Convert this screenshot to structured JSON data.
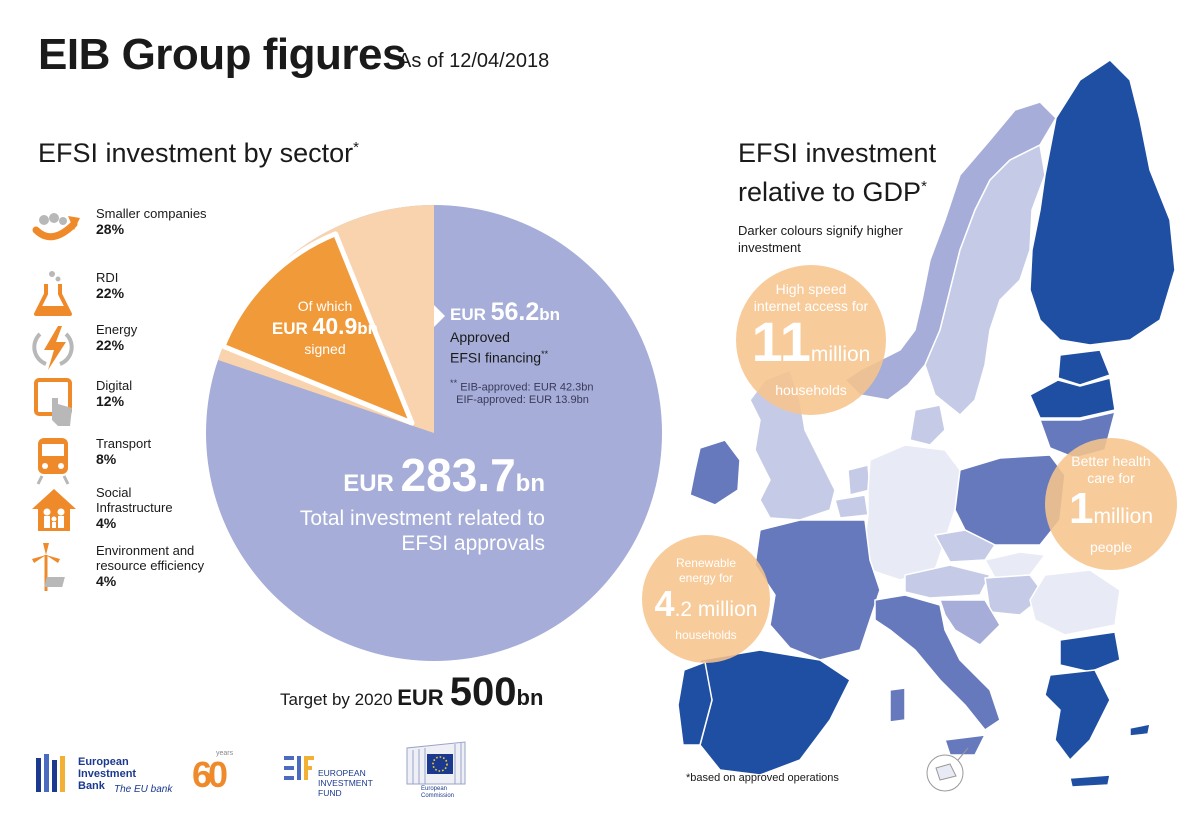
{
  "header": {
    "title": "EIB Group figures",
    "as_of": "As of 12/04/2018"
  },
  "sector_section": {
    "title": "EFSI investment by sector",
    "title_mark": "*",
    "items": [
      {
        "label": "Smaller companies",
        "pct": "28%",
        "icon": "handshake-people-icon"
      },
      {
        "label": "RDI",
        "pct": "22%",
        "icon": "flask-icon"
      },
      {
        "label": "Energy",
        "pct": "22%",
        "icon": "lightning-icon"
      },
      {
        "label": "Digital",
        "pct": "12%",
        "icon": "touchscreen-icon"
      },
      {
        "label": "Transport",
        "pct": "8%",
        "icon": "train-icon"
      },
      {
        "label": "Social\nInfrastructure",
        "pct": "4%",
        "icon": "house-family-icon"
      },
      {
        "label": "Environment and\nresource efficiency",
        "pct": "4%",
        "icon": "wind-turbine-icon"
      }
    ]
  },
  "pie": {
    "signed": {
      "prefix": "Of which",
      "currency": "EUR ",
      "amount": "40.9",
      "unit": "bn",
      "suffix": "signed"
    },
    "approved": {
      "currency": "EUR ",
      "amount": "56.2",
      "unit": "bn",
      "desc_line1": "Approved",
      "desc_line2": "EFSI financing",
      "desc_mark": "**",
      "note_mark": "**",
      "note1": " EIB-approved: EUR 42.3bn",
      "note2": "EIF-approved: EUR 13.9bn"
    },
    "total": {
      "currency": "EUR ",
      "amount": "283.7",
      "unit": "bn",
      "desc": "Total investment related to EFSI approvals"
    },
    "colors": {
      "total": "#a5add8",
      "approved": "#f9d3ae",
      "signed": "#f09a3a"
    }
  },
  "target": {
    "label": "Target by 2020 ",
    "currency": "EUR ",
    "amount": "500",
    "unit": "bn"
  },
  "map_section": {
    "title_line1": "EFSI investment",
    "title_line2": "relative to GDP",
    "title_mark": "*",
    "note": "Darker colours signify higher investment",
    "shade_colors": [
      "#e8eaf5",
      "#c5cbe6",
      "#a5add8",
      "#6679bd",
      "#1f4fa2"
    ]
  },
  "bubbles": {
    "internet": {
      "line1": "High speed",
      "line2": "internet access for",
      "number": "11",
      "unit": "million",
      "line3": "households"
    },
    "health": {
      "line1": "Better health",
      "line2": "care for",
      "number": "1",
      "unit": "million",
      "line3": "people"
    },
    "renewable": {
      "line1": "Renewable",
      "line2": "energy for",
      "number": "4",
      "number_rest": ".2 million",
      "line3": "households"
    }
  },
  "footnote": "*based on approved operations",
  "logos": {
    "eib_name": "European\nInvestment\nBank",
    "eib_tagline": "The EU bank",
    "sixty": "60",
    "sixty_years": "years",
    "eif_name": "EUROPEAN\nINVESTMENT\nFUND",
    "ec_name": "European\nCommission"
  }
}
